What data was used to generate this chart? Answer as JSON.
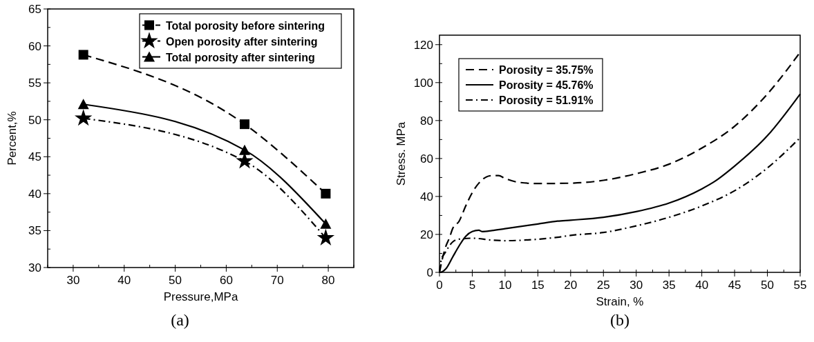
{
  "chart_data": [
    {
      "type": "line",
      "xlabel": "Pressure,MPa",
      "ylabel": "Percent,%",
      "xlim": [
        25,
        85
      ],
      "xticks": [
        30,
        40,
        50,
        60,
        70,
        80
      ],
      "ylim": [
        30,
        65
      ],
      "yticks": [
        30,
        35,
        40,
        45,
        50,
        55,
        60,
        65
      ],
      "legend": "top right",
      "annotations": [
        "(a)"
      ],
      "x": [
        32,
        63.6,
        79.5
      ],
      "series": [
        {
          "name": "Total porosity before sintering",
          "color": "#000000",
          "values": [
            58.8,
            49.4,
            40
          ],
          "marker": "square",
          "line_style": "dashed"
        },
        {
          "name": "Open porosity after sintering",
          "color": "#000000",
          "values": [
            50.2,
            44.4,
            34
          ],
          "marker": "star",
          "line_style": "dashdot"
        },
        {
          "name": "Total porosity after sintering",
          "color": "#000000",
          "values": [
            52.1,
            45.9,
            35.9
          ],
          "marker": "triangle",
          "line_style": "solid"
        }
      ]
    },
    {
      "type": "line",
      "xlabel": "Strain, %",
      "ylabel": "Stress. MPa",
      "xlim": [
        0,
        55
      ],
      "xticks": [
        0,
        5,
        10,
        15,
        20,
        25,
        30,
        35,
        40,
        45,
        50,
        55
      ],
      "ylim": [
        0,
        125
      ],
      "yticks": [
        0,
        20,
        40,
        60,
        80,
        100,
        120
      ],
      "legend": "top left",
      "annotations": [
        "(b)"
      ],
      "series": [
        {
          "name": "Porosity = 35.75%",
          "color": "#000000",
          "line_style": "dashed",
          "x": [
            0,
            0.5,
            1,
            1.5,
            2,
            3,
            4,
            5,
            6,
            7,
            8,
            9,
            10,
            12,
            15,
            20,
            25,
            30,
            35,
            40,
            45,
            50,
            55
          ],
          "values": [
            0,
            8,
            14,
            18,
            23,
            27,
            35,
            42,
            47,
            50,
            51,
            51,
            49.5,
            47.5,
            46.8,
            47,
            48.5,
            52,
            57,
            65.5,
            77,
            94,
            116
          ]
        },
        {
          "name": "Porosity = 45.76%",
          "color": "#000000",
          "line_style": "solid",
          "x": [
            0,
            0.5,
            1,
            2,
            3,
            4,
            5,
            6,
            6.5,
            8,
            10,
            15,
            18,
            20,
            25,
            30,
            35,
            40,
            42,
            45,
            50,
            55
          ],
          "values": [
            0,
            0.5,
            2,
            8,
            14,
            19,
            21.5,
            22.2,
            21.5,
            22,
            23,
            25.5,
            27,
            27.5,
            29,
            32,
            36.5,
            44,
            48,
            56,
            72,
            94
          ]
        },
        {
          "name": "Porosity = 51.91%",
          "color": "#000000",
          "line_style": "dashdot",
          "x": [
            0,
            0.3,
            0.8,
            2,
            3,
            5,
            8,
            10,
            13,
            18,
            20,
            25,
            30,
            35,
            40,
            45,
            50,
            55
          ],
          "values": [
            0,
            7,
            10,
            16,
            17.5,
            18,
            17,
            16.7,
            17,
            18.5,
            19.5,
            21,
            24.5,
            29,
            35,
            43,
            55,
            71
          ]
        }
      ]
    }
  ]
}
